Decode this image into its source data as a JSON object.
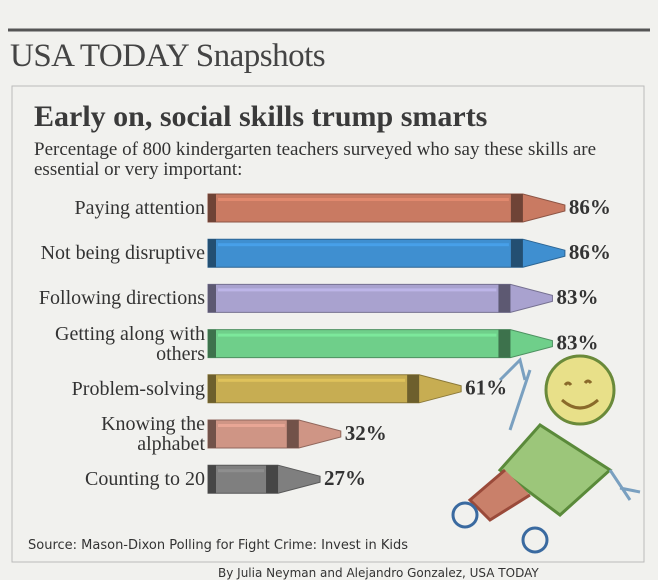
{
  "chart_data": {
    "type": "crayon-bar",
    "header": "USA TODAY Snapshots",
    "title": "Early on, social skills trump smarts",
    "subtitle": "Percentage of 800 kindergarten teachers surveyed who say these skills are essential or very important:",
    "categories": [
      "Paying attention",
      "Not being disruptive",
      "Following directions",
      "Getting along with others",
      "Problem-solving",
      "Knowing the alphabet",
      "Counting to 20"
    ],
    "values": [
      86,
      86,
      83,
      83,
      61,
      32,
      27
    ],
    "value_labels": [
      "86%",
      "86%",
      "83%",
      "83%",
      "61%",
      "32%",
      "27%"
    ],
    "colors": [
      "#c97a62",
      "#3f8fd0",
      "#a9a2cf",
      "#6fcf8a",
      "#c7ad52",
      "#cf9585",
      "#7f7f7f"
    ],
    "source": "Source: Mason-Dixon Polling for Fight Crime: Invest in Kids",
    "byline": "By Julia Neyman and Alejandro Gonzalez, USA TODAY"
  }
}
